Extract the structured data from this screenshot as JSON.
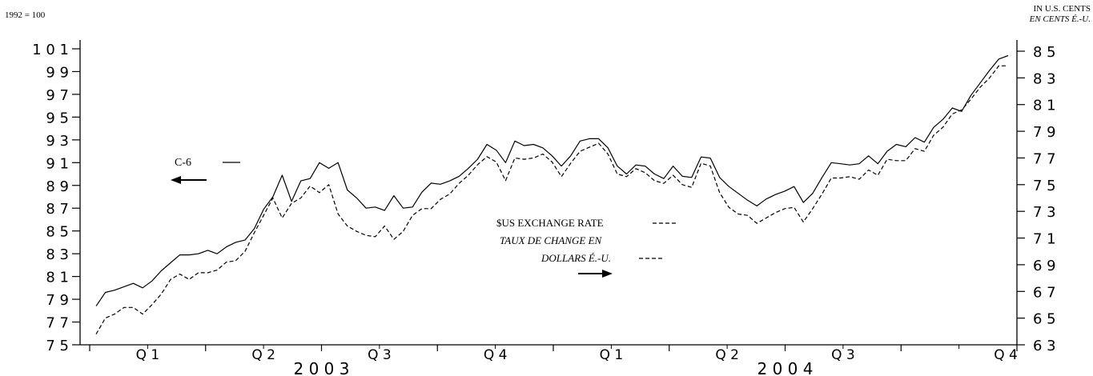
{
  "chart_data": {
    "type": "line",
    "left_axis": {
      "unit_label": "1992 = 100",
      "range": [
        75,
        102
      ],
      "ticks": [
        75,
        77,
        79,
        81,
        83,
        85,
        87,
        89,
        91,
        93,
        95,
        97,
        99,
        101
      ],
      "tick_labels": [
        "7 5",
        "7 7",
        "7 9",
        "8 1",
        "8 3",
        "8 5",
        "8 7",
        "8 9",
        "9 1",
        "9 3",
        "9 5",
        "9 7",
        "9 9",
        "1 0 1"
      ]
    },
    "right_axis": {
      "unit_label_en": "IN U.S. CENTS",
      "unit_label_fr": "EN CENTS É.-U.",
      "range": [
        63,
        86
      ],
      "ticks": [
        63,
        65,
        67,
        69,
        71,
        73,
        75,
        77,
        79,
        81,
        83,
        85
      ],
      "tick_labels": [
        "6 3",
        "6 5",
        "6 7",
        "6 9",
        "7 1",
        "7 3",
        "7 5",
        "7 7",
        "7 9",
        "8 1",
        "8 3",
        "8 5"
      ]
    },
    "x_axis": {
      "quarter_labels": [
        "Q 1",
        "Q 2",
        "Q 3",
        "Q 4",
        "Q 1",
        "Q 2",
        "Q 3",
        "Q 4"
      ],
      "year_labels": [
        "2 0 0 3",
        "2 0 0 4"
      ]
    },
    "series": [
      {
        "name": "C-6",
        "axis": "left",
        "style": "solid",
        "values": [
          78.4,
          79.6,
          79.8,
          80.1,
          80.4,
          80.0,
          80.6,
          81.5,
          82.2,
          82.9,
          82.9,
          83.0,
          83.3,
          83.0,
          83.6,
          84.0,
          84.2,
          85.2,
          86.9,
          88.0,
          89.9,
          87.6,
          89.4,
          89.6,
          91.0,
          90.5,
          91.0,
          88.6,
          87.9,
          87.0,
          87.1,
          86.8,
          88.1,
          87.0,
          87.1,
          88.4,
          89.2,
          89.1,
          89.4,
          89.8,
          90.5,
          91.3,
          92.6,
          92.1,
          91.0,
          92.9,
          92.5,
          92.6,
          92.3,
          91.6,
          90.7,
          91.6,
          92.9,
          93.1,
          93.1,
          92.3,
          90.7,
          90.0,
          90.8,
          90.7,
          90.0,
          89.6,
          90.7,
          89.8,
          89.7,
          91.5,
          91.4,
          89.7,
          88.9,
          88.3,
          87.7,
          87.2,
          87.8,
          88.2,
          88.5,
          88.9,
          87.5,
          88.3,
          89.7,
          91.0,
          90.9,
          90.8,
          90.9,
          91.6,
          90.9,
          92.0,
          92.6,
          92.4,
          93.2,
          92.8,
          94.1,
          94.8,
          95.8,
          95.5,
          96.9,
          98.0,
          99.1,
          100.1,
          100.4
        ]
      },
      {
        "name": "$US EXCHANGE RATE",
        "name_fr": "TAUX DE CHANGE EN",
        "name_fr_2": "DOLLARS É.-U.",
        "axis": "right",
        "style": "dashed",
        "values": [
          63.8,
          65.0,
          65.3,
          65.8,
          65.8,
          65.3,
          66.0,
          66.8,
          67.9,
          68.3,
          67.9,
          68.4,
          68.4,
          68.6,
          69.2,
          69.3,
          70.0,
          71.4,
          72.7,
          74.0,
          72.5,
          73.6,
          74.0,
          74.9,
          74.4,
          75.0,
          72.8,
          71.9,
          71.5,
          71.2,
          71.1,
          71.9,
          70.9,
          71.5,
          72.7,
          73.2,
          73.2,
          73.9,
          74.3,
          75.1,
          75.7,
          76.5,
          77.1,
          76.7,
          75.3,
          77.0,
          76.9,
          77.0,
          77.3,
          76.7,
          75.6,
          76.6,
          77.5,
          77.8,
          78.1,
          77.3,
          75.8,
          75.6,
          76.2,
          75.9,
          75.3,
          75.1,
          75.7,
          75.0,
          74.8,
          76.6,
          76.4,
          74.4,
          73.3,
          72.8,
          72.7,
          72.1,
          72.5,
          72.9,
          73.2,
          73.3,
          72.2,
          73.2,
          74.3,
          75.5,
          75.5,
          75.6,
          75.4,
          76.1,
          75.7,
          76.9,
          76.8,
          76.8,
          77.7,
          77.5,
          78.7,
          79.3,
          80.3,
          80.6,
          81.4,
          82.3,
          83.0,
          83.9,
          83.9
        ]
      }
    ],
    "annotations": {
      "c6_label": "C-6",
      "grid": false,
      "legend": "inline"
    }
  }
}
